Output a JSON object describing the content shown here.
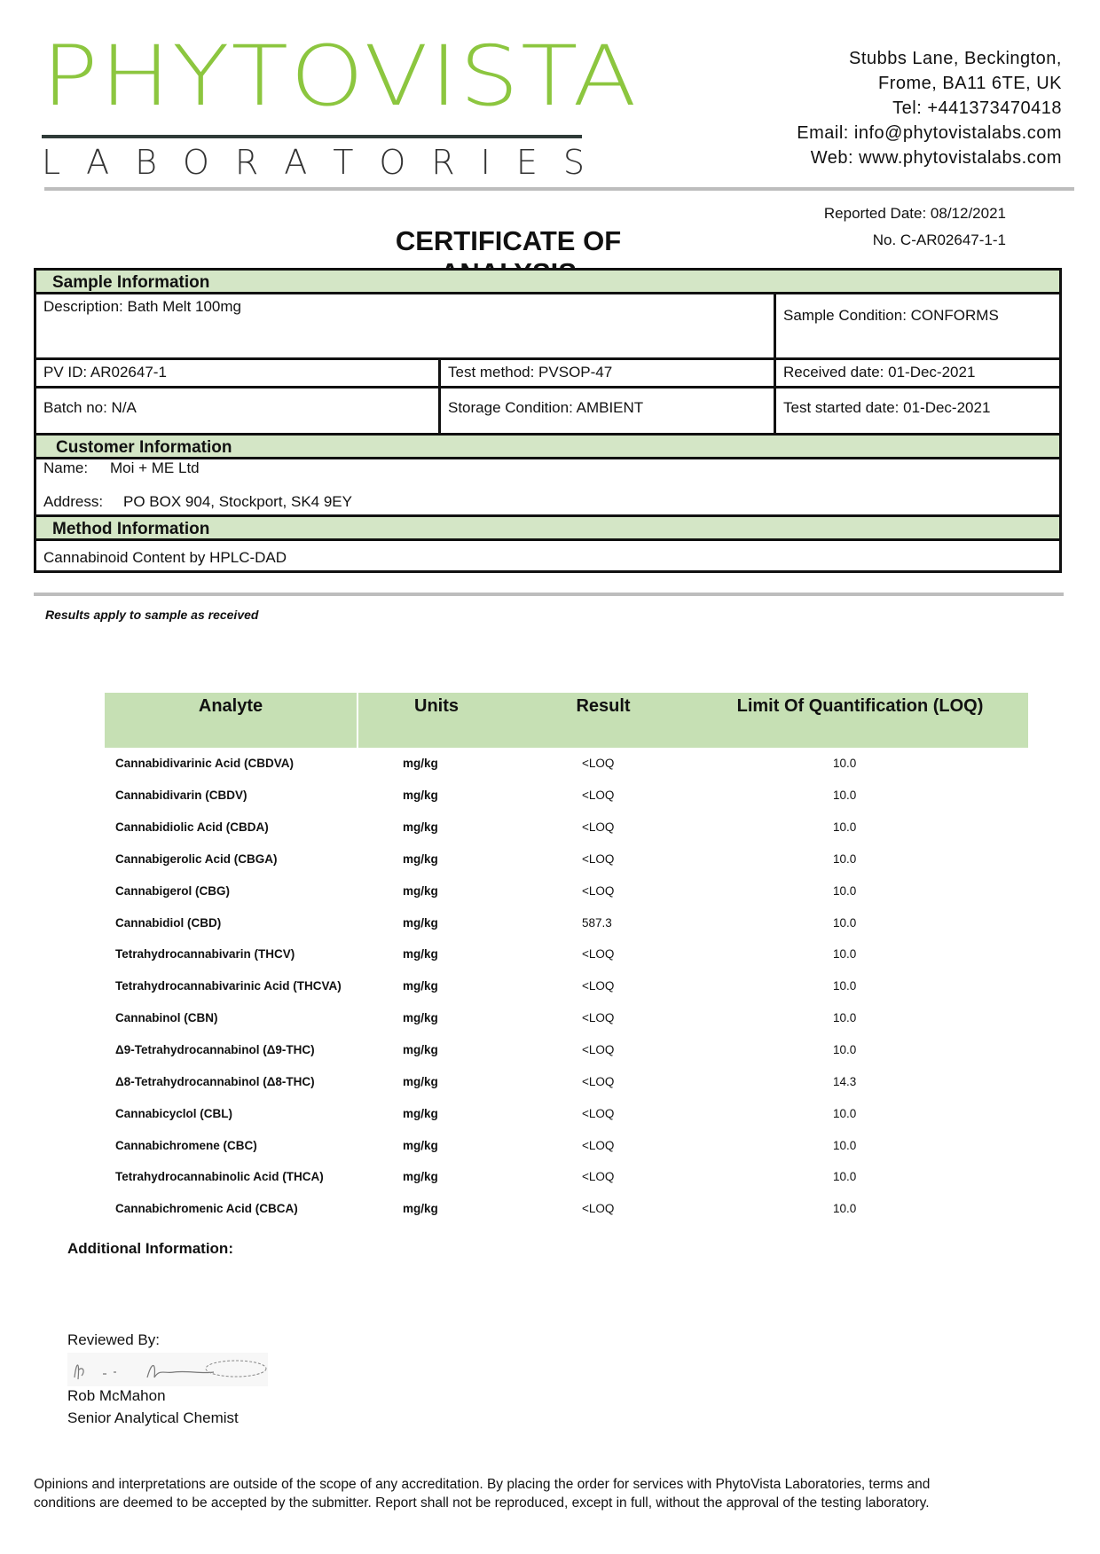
{
  "header": {
    "logo_main": "PHYTOVISTA",
    "logo_sub": "LABORATORIES",
    "brand_color": "#8cc63f",
    "address_lines": [
      "Stubbs Lane, Beckington,",
      "Frome, BA11 6TE, UK",
      "Tel: +441373470418",
      "Email: info@phytovistalabs.com",
      "Web: www.phytovistalabs.com"
    ],
    "reported_date": "Reported Date: 08/12/2021",
    "report_no": "No. C-AR02647-1-1",
    "title": "CERTIFICATE OF ANALYSIS"
  },
  "sample": {
    "heading": "Sample Information",
    "description": "Description: Bath Melt 100mg",
    "condition": "Sample Condition: CONFORMS",
    "pv_id": "PV ID: AR02647-1",
    "test_method": "Test method: PVSOP-47",
    "received": "Received date: 01-Dec-2021",
    "batch": "Batch no: N/A",
    "storage": "Storage Condition: AMBIENT",
    "test_started": "Test started date: 01-Dec-2021"
  },
  "customer": {
    "heading": "Customer Information",
    "name_label": "Name:",
    "name": "Moi + ME Ltd",
    "address_label": "Address:",
    "address": "PO BOX 904, Stockport, SK4 9EY"
  },
  "method": {
    "heading": "Method Information",
    "text": "Cannabinoid Content by HPLC-DAD"
  },
  "results_note": "Results apply to sample as received",
  "results": {
    "headers": [
      "Analyte",
      "Units",
      "Result",
      "Limit Of Quantification (LOQ)"
    ],
    "rows": [
      [
        "Cannabidivarinic Acid (CBDVA)",
        "mg/kg",
        "<LOQ",
        "10.0"
      ],
      [
        "Cannabidivarin (CBDV)",
        "mg/kg",
        "<LOQ",
        "10.0"
      ],
      [
        "Cannabidiolic Acid (CBDA)",
        "mg/kg",
        "<LOQ",
        "10.0"
      ],
      [
        "Cannabigerolic Acid (CBGA)",
        "mg/kg",
        "<LOQ",
        "10.0"
      ],
      [
        "Cannabigerol (CBG)",
        "mg/kg",
        "<LOQ",
        "10.0"
      ],
      [
        "Cannabidiol (CBD)",
        "mg/kg",
        "587.3",
        "10.0"
      ],
      [
        "Tetrahydrocannabivarin (THCV)",
        "mg/kg",
        "<LOQ",
        "10.0"
      ],
      [
        "Tetrahydrocannabivarinic Acid (THCVA)",
        "mg/kg",
        "<LOQ",
        "10.0"
      ],
      [
        "Cannabinol (CBN)",
        "mg/kg",
        "<LOQ",
        "10.0"
      ],
      [
        "Δ9-Tetrahydrocannabinol (Δ9-THC)",
        "mg/kg",
        "<LOQ",
        "10.0"
      ],
      [
        "Δ8-Tetrahydrocannabinol (Δ8-THC)",
        "mg/kg",
        "<LOQ",
        "14.3"
      ],
      [
        "Cannabicyclol (CBL)",
        "mg/kg",
        "<LOQ",
        "10.0"
      ],
      [
        "Cannabichromene (CBC)",
        "mg/kg",
        "<LOQ",
        "10.0"
      ],
      [
        "Tetrahydrocannabinolic Acid (THCA)",
        "mg/kg",
        "<LOQ",
        "10.0"
      ],
      [
        "Cannabichromenic Acid (CBCA)",
        "mg/kg",
        "<LOQ",
        "10.0"
      ]
    ]
  },
  "additional_info_label": "Additional Information:",
  "review": {
    "label": "Reviewed By:",
    "name": "Rob McMahon",
    "role": "Senior Analytical Chemist"
  },
  "footer": "Opinions and interpretations are outside of the scope of any accreditation. By placing the order for services with PhytoVista Laboratories, terms and conditions are deemed to be accepted by the submitter. Report shall not be reproduced, except in full, without the approval of the testing laboratory."
}
